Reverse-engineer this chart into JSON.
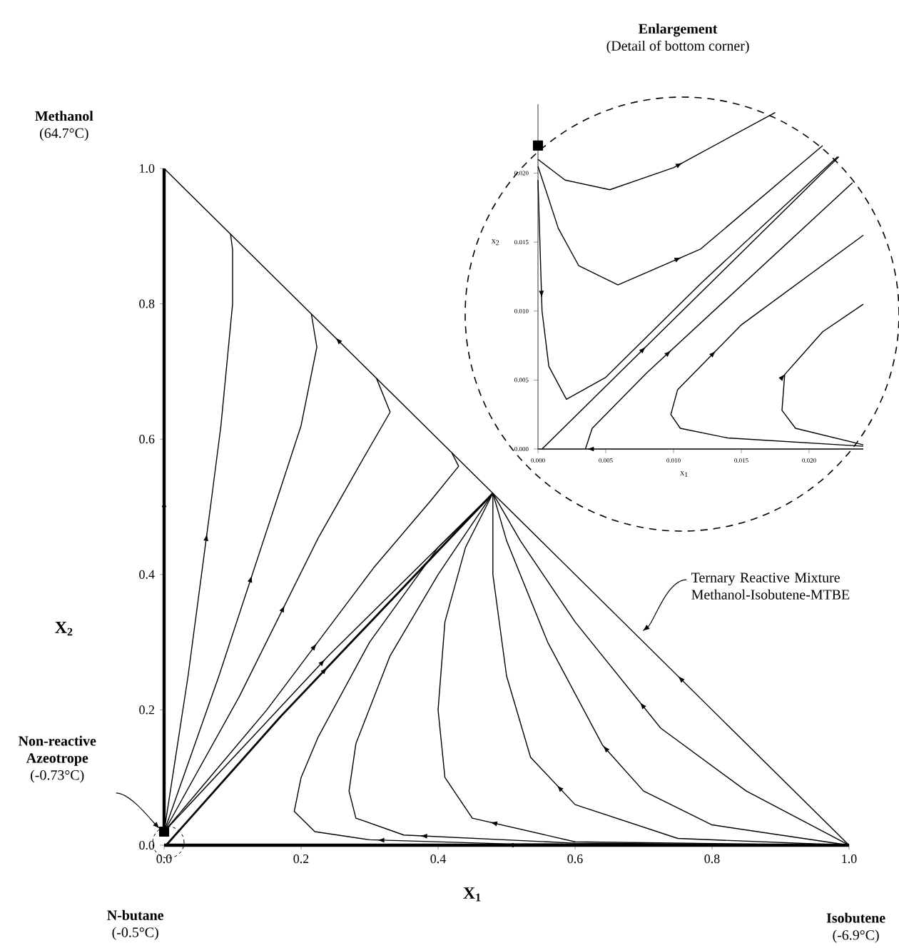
{
  "chart_data": [
    {
      "type": "line",
      "xlabel": "X$_{1}$",
      "ylabel": "X$_{2}$",
      "color": "#000000",
      "marker": "none",
      "xlim": [
        0,
        1
      ],
      "ylim": [
        0,
        1
      ],
      "xticks": [
        {
          "value": 0,
          "label": "0.0"
        },
        {
          "value": 0.2,
          "label": "0.2"
        },
        {
          "value": 0.4,
          "label": "0.4"
        },
        {
          "value": 0.6,
          "label": "0.6"
        },
        {
          "value": 0.8,
          "label": "0.8"
        },
        {
          "value": 1,
          "label": "1.0"
        }
      ],
      "yticks": [
        {
          "value": 0,
          "label": "0.0"
        },
        {
          "value": 0.2,
          "label": "0.2"
        },
        {
          "value": 0.4,
          "label": "0.4"
        },
        {
          "value": 0.6,
          "label": "0.6"
        },
        {
          "value": 0.8,
          "label": "0.8"
        },
        {
          "value": 1,
          "label": "1.0"
        }
      ],
      "series": [
        {
          "x": [
            0,
            0
          ],
          "values": [
            0.02,
            1
          ]
        },
        {
          "x": [
            1,
            0
          ],
          "values": [
            0,
            0
          ]
        },
        {
          "x": [
            1,
            0.48,
            0
          ],
          "values": [
            0,
            0.52,
            1
          ]
        },
        {
          "x": [
            0,
            0.035,
            0.069,
            0.083,
            0.1,
            0.1,
            0.097
          ],
          "values": [
            0.02,
            0.25,
            0.51,
            0.62,
            0.8,
            0.88,
            0.903
          ]
        },
        {
          "x": [
            0,
            0.08,
            0.158,
            0.2,
            0.223,
            0.215
          ],
          "values": [
            0.02,
            0.25,
            0.49,
            0.62,
            0.736,
            0.785
          ]
        },
        {
          "x": [
            0,
            0.11,
            0.225,
            0.29,
            0.33,
            0.31
          ],
          "values": [
            0.02,
            0.22,
            0.454,
            0.57,
            0.64,
            0.69
          ]
        },
        {
          "x": [
            0,
            0.15,
            0.306,
            0.39,
            0.43,
            0.42
          ],
          "values": [
            0.02,
            0.2,
            0.41,
            0.51,
            0.56,
            0.58
          ]
        },
        {
          "x": [
            0,
            0.24,
            0.48
          ],
          "values": [
            0.02,
            0.28,
            0.52
          ]
        },
        {
          "x": [
            0.003,
            0.17,
            0.48
          ],
          "values": [
            0,
            0.19,
            0.52
          ]
        },
        {
          "x": [
            1,
            0.5,
            0.3,
            0.22,
            0.19,
            0.2,
            0.225,
            0.3,
            0.4,
            0.48
          ],
          "values": [
            0,
            0.002,
            0.008,
            0.02,
            0.05,
            0.1,
            0.16,
            0.3,
            0.44,
            0.52
          ]
        },
        {
          "x": [
            1,
            0.6,
            0.35,
            0.28,
            0.27,
            0.28,
            0.33,
            0.4,
            0.48
          ],
          "values": [
            0,
            0.003,
            0.015,
            0.04,
            0.08,
            0.15,
            0.28,
            0.4,
            0.52
          ]
        },
        {
          "x": [
            1,
            0.6,
            0.45,
            0.41,
            0.4,
            0.41,
            0.44,
            0.48
          ],
          "values": [
            0,
            0.005,
            0.04,
            0.1,
            0.2,
            0.33,
            0.44,
            0.52
          ]
        },
        {
          "x": [
            1,
            0.75,
            0.6,
            0.535,
            0.5,
            0.48,
            0.48
          ],
          "values": [
            0,
            0.01,
            0.06,
            0.13,
            0.25,
            0.4,
            0.52
          ]
        },
        {
          "x": [
            1,
            0.8,
            0.7,
            0.64,
            0.56,
            0.5,
            0.48
          ],
          "values": [
            0,
            0.03,
            0.08,
            0.148,
            0.3,
            0.45,
            0.52
          ]
        },
        {
          "x": [
            1,
            0.85,
            0.725,
            0.6,
            0.52,
            0.48
          ],
          "values": [
            0,
            0.08,
            0.173,
            0.33,
            0.45,
            0.52
          ]
        },
        {
          "type": "scatter",
          "marker": "square",
          "x": [
            0
          ],
          "values": [
            0.02
          ]
        }
      ],
      "annotations": [
        "**Methanol** (64.7°C)",
        "**Non-reactive Azeotrope** (-0.73°C)",
        "**N-butane** (-0.5°C)",
        "**Isobutene** (-6.9°C)",
        "Ternary Reactive Mixture Methanol-Isobutene-MTBE"
      ]
    },
    {
      "type": "line",
      "title": "Enlargement",
      "subtitle": "(Detail of bottom corner)",
      "xlabel": "x$_{1}$",
      "ylabel": "x$_{2}$",
      "color": "#000000",
      "marker": "none",
      "xlim": [
        0,
        0.024
      ],
      "ylim": [
        0,
        0.025
      ],
      "xticks": [
        {
          "value": 0,
          "label": "0.000"
        },
        {
          "value": 0.005,
          "label": "0.005"
        },
        {
          "value": 0.01,
          "label": "0.010"
        },
        {
          "value": 0.015,
          "label": "0.015"
        },
        {
          "value": 0.02,
          "label": "0.020"
        }
      ],
      "yticks": [
        {
          "value": 0,
          "label": "0.000"
        },
        {
          "value": 0.005,
          "label": "0.005"
        },
        {
          "value": 0.01,
          "label": "0.010"
        },
        {
          "value": 0.015,
          "label": "0.015"
        },
        {
          "value": 0.02,
          "label": "0.020"
        }
      ],
      "series": [
        {
          "x": [
            0.024,
            0
          ],
          "values": [
            0,
            0
          ]
        },
        {
          "x": [
            0,
            0.002,
            0.0053,
            0.01,
            0.0175
          ],
          "values": [
            0.021,
            0.0195,
            0.0188,
            0.0204,
            0.0244
          ]
        },
        {
          "x": [
            0,
            0.0015,
            0.003,
            0.0059,
            0.012,
            0.021
          ],
          "values": [
            0.0205,
            0.016,
            0.0133,
            0.0119,
            0.0145,
            0.022
          ]
        },
        {
          "x": [
            0,
            0.0003,
            0.0008,
            0.0021,
            0.005,
            0.012,
            0.0221
          ],
          "values": [
            0.0195,
            0.01,
            0.006,
            0.0036,
            0.0052,
            0.012,
            0.0212
          ]
        },
        {
          "x": [
            0.0003,
            0.0222
          ],
          "values": [
            0,
            0.0212
          ]
        },
        {
          "x": [
            0.0035,
            0.004,
            0.008,
            0.0232
          ],
          "values": [
            0,
            0.0015,
            0.0055,
            0.0193
          ]
        },
        {
          "x": [
            0.024,
            0.014,
            0.0105,
            0.0098,
            0.0103,
            0.015,
            0.024
          ],
          "values": [
            0.0002,
            0.0008,
            0.0015,
            0.0025,
            0.0043,
            0.009,
            0.0155
          ]
        },
        {
          "x": [
            0.024,
            0.019,
            0.018,
            0.0182,
            0.021,
            0.024
          ],
          "values": [
            0.0003,
            0.0015,
            0.0028,
            0.0054,
            0.0085,
            0.0105
          ]
        },
        {
          "type": "scatter",
          "marker": "square",
          "x": [
            0
          ],
          "values": [
            0.022
          ]
        }
      ]
    }
  ]
}
